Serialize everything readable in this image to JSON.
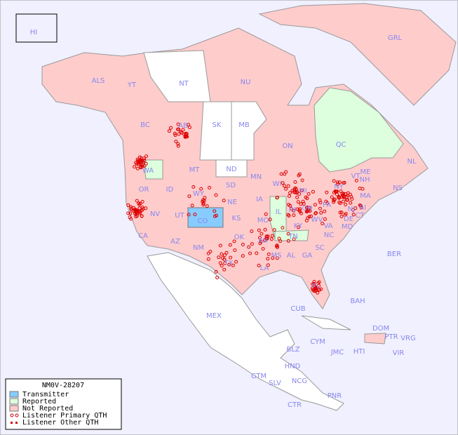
{
  "legend": {
    "title": "NM0V-28207",
    "items": [
      "Transmitter",
      "Reported",
      "Not Reported",
      "Listener Primary QTH",
      "Listener Other QTH"
    ]
  },
  "regions": [
    "HI",
    "ALS",
    "YT",
    "NT",
    "NU",
    "GRL",
    "BC",
    "AB",
    "SK",
    "MB",
    "ON",
    "QC",
    "NL",
    "NS",
    "ND",
    "MN",
    "WA",
    "MT",
    "SD",
    "WI",
    "MI",
    "ID",
    "WY",
    "NE",
    "IA",
    "IL",
    "IN",
    "OH",
    "PA",
    "NY",
    "VT",
    "NH",
    "ME",
    "OR",
    "NV",
    "UT",
    "CO",
    "KS",
    "MO",
    "KY",
    "WV",
    "VA",
    "MD",
    "DE",
    "NJ",
    "CT",
    "RI",
    "MA",
    "CA",
    "AZ",
    "NM",
    "OK",
    "AR",
    "TN",
    "NC",
    "SC",
    "MS",
    "AL",
    "GA",
    "TX",
    "LA",
    "FL",
    "MEX",
    "BER",
    "BAH",
    "CUB",
    "DOM",
    "PTR",
    "VRG",
    "CYM",
    "JMC",
    "HTI",
    "VIR",
    "BLZ",
    "HND",
    "GTM",
    "SLV",
    "NCG",
    "CTR",
    "PNR"
  ]
}
